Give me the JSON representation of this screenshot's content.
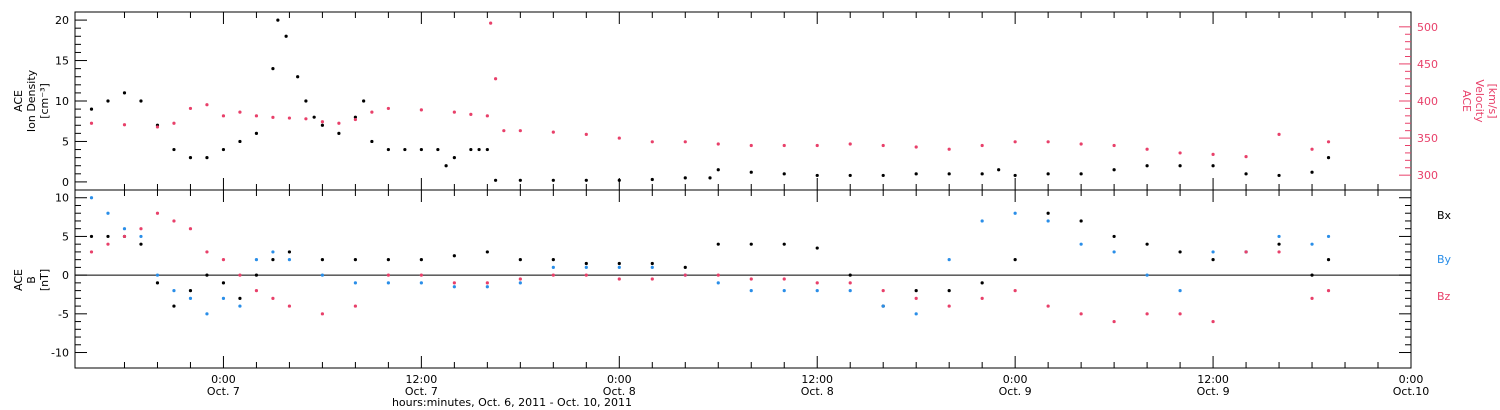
{
  "chart_data": [
    {
      "type": "scatter",
      "panel": "top",
      "ylabel": [
        "ACE",
        "Ion Density",
        "[cm⁻³]"
      ],
      "ylim": [
        -1,
        21
      ],
      "yticks": [
        0,
        5,
        10,
        15,
        20
      ],
      "y2label": [
        "ACE",
        "Velocity",
        "[km/s]"
      ],
      "y2lim": [
        280,
        520
      ],
      "y2ticks": [
        300,
        350,
        400,
        450,
        500
      ],
      "series": [
        {
          "name": "",
          "axis": "left",
          "color": "#000000",
          "x": [
            -8,
            -7,
            -6,
            -5,
            -4,
            -3,
            -2,
            -1,
            0,
            1,
            2,
            3,
            3.3,
            3.8,
            4.5,
            5,
            5.5,
            6,
            7,
            8,
            8.5,
            9,
            10,
            11,
            12,
            13,
            13.5,
            14,
            15,
            15.5,
            16,
            16.5,
            18,
            20,
            22,
            24,
            26,
            28,
            29.5,
            30,
            32,
            34,
            36,
            38,
            40,
            42,
            44,
            46,
            47,
            48,
            50,
            52,
            54,
            56,
            58,
            60,
            62,
            64,
            66,
            67
          ],
          "y": [
            9,
            10,
            11,
            10,
            7,
            4,
            3,
            3,
            4,
            5,
            6,
            14,
            20,
            18,
            13,
            10,
            8,
            7,
            6,
            8,
            10,
            5,
            4,
            4,
            4,
            4,
            2,
            3,
            4,
            4,
            4,
            0.2,
            0.2,
            0.2,
            0.2,
            0.2,
            0.3,
            0.5,
            0.5,
            1.5,
            1.2,
            1,
            0.8,
            0.8,
            0.8,
            1,
            1,
            1,
            1.5,
            0.8,
            1,
            1,
            1.5,
            2,
            2,
            2,
            1,
            0.8,
            1.2,
            3
          ]
        },
        {
          "name": "",
          "axis": "right",
          "color": "#e8406a",
          "x": [
            -8,
            -6,
            -4,
            -3,
            -2,
            -1,
            0,
            1,
            2,
            3,
            4,
            5,
            6,
            7,
            8,
            9,
            10,
            12,
            14,
            15,
            16,
            16.2,
            16.5,
            17,
            18,
            20,
            22,
            24,
            26,
            28,
            30,
            32,
            34,
            36,
            38,
            40,
            42,
            44,
            46,
            48,
            50,
            52,
            54,
            56,
            58,
            60,
            62,
            64,
            66,
            67
          ],
          "y": [
            370,
            368,
            365,
            370,
            390,
            395,
            380,
            385,
            380,
            378,
            377,
            376,
            372,
            370,
            375,
            385,
            390,
            388,
            385,
            382,
            380,
            505,
            430,
            360,
            360,
            358,
            355,
            350,
            345,
            345,
            342,
            340,
            340,
            340,
            342,
            340,
            338,
            335,
            340,
            345,
            345,
            342,
            340,
            335,
            330,
            328,
            325,
            355,
            335,
            345
          ]
        }
      ]
    },
    {
      "type": "scatter",
      "panel": "bottom",
      "ylabel": [
        "ACE",
        "B",
        "[nT]"
      ],
      "ylim": [
        -12,
        11
      ],
      "yticks": [
        -10,
        -5,
        0,
        5,
        10
      ],
      "series": [
        {
          "name": "Bx",
          "color": "#000000",
          "x": [
            -8,
            -7,
            -6,
            -5,
            -4,
            -3,
            -2,
            -1,
            0,
            1,
            2,
            3,
            4,
            6,
            8,
            10,
            12,
            14,
            16,
            18,
            20,
            22,
            24,
            26,
            28,
            30,
            32,
            34,
            36,
            38,
            40,
            42,
            44,
            46,
            48,
            50,
            52,
            54,
            56,
            58,
            60,
            62,
            64,
            66,
            67
          ],
          "y": [
            5,
            5,
            5,
            4,
            -1,
            -4,
            -2,
            0,
            -1,
            -3,
            0,
            2,
            3,
            2,
            2,
            2,
            2,
            2.5,
            3,
            2,
            2,
            1.5,
            1.5,
            1.5,
            1,
            4,
            4,
            4,
            3.5,
            0,
            -4,
            -2,
            -2,
            -1,
            2,
            8,
            7,
            5,
            4,
            3,
            2,
            3,
            4,
            0,
            2
          ]
        },
        {
          "name": "By",
          "color": "#2a8ee8",
          "x": [
            -8,
            -7,
            -6,
            -5,
            -4,
            -3,
            -2,
            -1,
            0,
            1,
            2,
            3,
            4,
            6,
            8,
            10,
            12,
            14,
            16,
            18,
            20,
            22,
            24,
            26,
            28,
            30,
            32,
            34,
            36,
            38,
            40,
            42,
            44,
            46,
            48,
            50,
            52,
            54,
            56,
            58,
            60,
            62,
            64,
            66,
            67
          ],
          "y": [
            10,
            8,
            6,
            5,
            0,
            -2,
            -3,
            -5,
            -3,
            -4,
            2,
            3,
            2,
            0,
            -1,
            -1,
            -1,
            -1.5,
            -1.5,
            -1,
            1,
            1,
            1,
            1,
            0,
            -1,
            -2,
            -2,
            -2,
            -2,
            -4,
            -5,
            2,
            7,
            8,
            7,
            4,
            3,
            0,
            -2,
            3,
            3,
            5,
            4,
            5
          ]
        },
        {
          "name": "Bz",
          "color": "#e8406a",
          "x": [
            -8,
            -7,
            -6,
            -5,
            -4,
            -3,
            -2,
            -1,
            0,
            1,
            2,
            3,
            4,
            6,
            8,
            10,
            12,
            14,
            16,
            18,
            20,
            22,
            24,
            26,
            28,
            30,
            32,
            34,
            36,
            38,
            40,
            42,
            44,
            46,
            48,
            50,
            52,
            54,
            56,
            58,
            60,
            62,
            64,
            66,
            67
          ],
          "y": [
            3,
            4,
            5,
            6,
            8,
            7,
            6,
            3,
            2,
            0,
            -2,
            -3,
            -4,
            -5,
            -4,
            0,
            0,
            -1,
            -1,
            -0.5,
            0,
            0,
            -0.5,
            -0.5,
            0,
            0,
            -0.5,
            -0.5,
            -1,
            -1,
            -2,
            -3,
            -4,
            -3,
            -2,
            -4,
            -5,
            -6,
            -5,
            -5,
            -6,
            3,
            3,
            -3,
            -2
          ]
        }
      ]
    }
  ],
  "xaxis": {
    "xlim": [
      -9,
      72
    ],
    "tick_labels": [
      {
        "x": 0,
        "time": "0:00",
        "date": "Oct. 7"
      },
      {
        "x": 12,
        "time": "12:00",
        "date": "Oct. 7"
      },
      {
        "x": 24,
        "time": "0:00",
        "date": "Oct. 8"
      },
      {
        "x": 36,
        "time": "12:00",
        "date": "Oct. 8"
      },
      {
        "x": 48,
        "time": "0:00",
        "date": "Oct. 9"
      },
      {
        "x": 60,
        "time": "12:00",
        "date": "Oct. 9"
      },
      {
        "x": 72,
        "time": "0:00",
        "date": "Oct.10"
      }
    ],
    "label": "hours:minutes, Oct.  6, 2011 - Oct. 10, 2011"
  }
}
